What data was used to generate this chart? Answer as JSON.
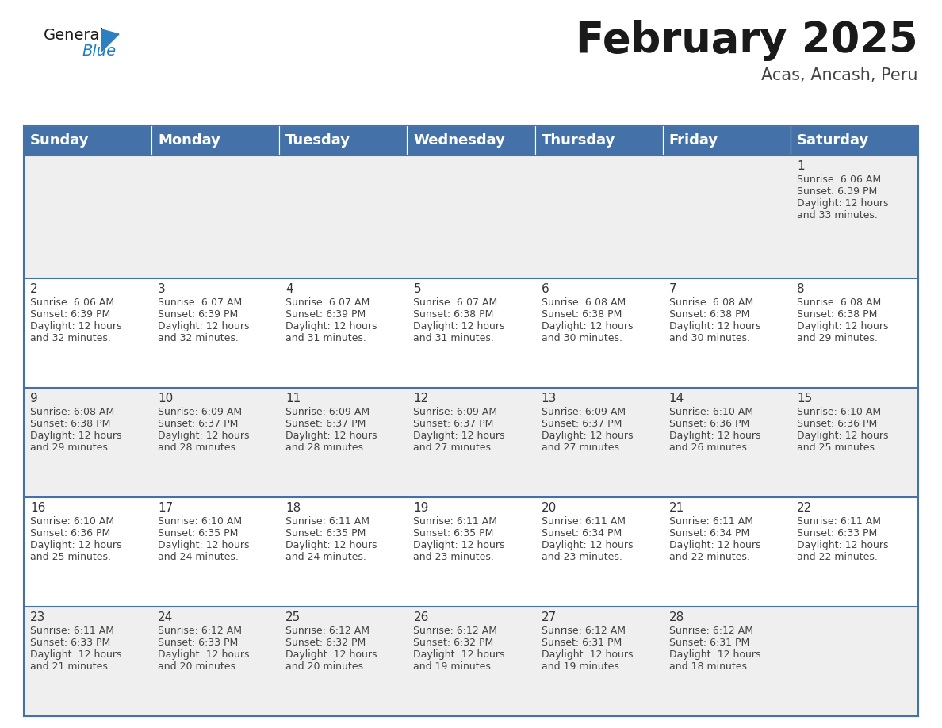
{
  "title": "February 2025",
  "subtitle": "Acas, Ancash, Peru",
  "header_bg": "#4472a8",
  "header_text": "#ffffff",
  "row_bg_light": "#efefef",
  "row_bg_white": "#ffffff",
  "cell_border_color": "#4472a8",
  "day_headers": [
    "Sunday",
    "Monday",
    "Tuesday",
    "Wednesday",
    "Thursday",
    "Friday",
    "Saturday"
  ],
  "calendar_data": [
    [
      null,
      null,
      null,
      null,
      null,
      null,
      {
        "day": 1,
        "sunrise": "6:06 AM",
        "sunset": "6:39 PM",
        "daylight": "12 hours",
        "daylight2": "and 33 minutes."
      }
    ],
    [
      {
        "day": 2,
        "sunrise": "6:06 AM",
        "sunset": "6:39 PM",
        "daylight": "12 hours",
        "daylight2": "and 32 minutes."
      },
      {
        "day": 3,
        "sunrise": "6:07 AM",
        "sunset": "6:39 PM",
        "daylight": "12 hours",
        "daylight2": "and 32 minutes."
      },
      {
        "day": 4,
        "sunrise": "6:07 AM",
        "sunset": "6:39 PM",
        "daylight": "12 hours",
        "daylight2": "and 31 minutes."
      },
      {
        "day": 5,
        "sunrise": "6:07 AM",
        "sunset": "6:38 PM",
        "daylight": "12 hours",
        "daylight2": "and 31 minutes."
      },
      {
        "day": 6,
        "sunrise": "6:08 AM",
        "sunset": "6:38 PM",
        "daylight": "12 hours",
        "daylight2": "and 30 minutes."
      },
      {
        "day": 7,
        "sunrise": "6:08 AM",
        "sunset": "6:38 PM",
        "daylight": "12 hours",
        "daylight2": "and 30 minutes."
      },
      {
        "day": 8,
        "sunrise": "6:08 AM",
        "sunset": "6:38 PM",
        "daylight": "12 hours",
        "daylight2": "and 29 minutes."
      }
    ],
    [
      {
        "day": 9,
        "sunrise": "6:08 AM",
        "sunset": "6:38 PM",
        "daylight": "12 hours",
        "daylight2": "and 29 minutes."
      },
      {
        "day": 10,
        "sunrise": "6:09 AM",
        "sunset": "6:37 PM",
        "daylight": "12 hours",
        "daylight2": "and 28 minutes."
      },
      {
        "day": 11,
        "sunrise": "6:09 AM",
        "sunset": "6:37 PM",
        "daylight": "12 hours",
        "daylight2": "and 28 minutes."
      },
      {
        "day": 12,
        "sunrise": "6:09 AM",
        "sunset": "6:37 PM",
        "daylight": "12 hours",
        "daylight2": "and 27 minutes."
      },
      {
        "day": 13,
        "sunrise": "6:09 AM",
        "sunset": "6:37 PM",
        "daylight": "12 hours",
        "daylight2": "and 27 minutes."
      },
      {
        "day": 14,
        "sunrise": "6:10 AM",
        "sunset": "6:36 PM",
        "daylight": "12 hours",
        "daylight2": "and 26 minutes."
      },
      {
        "day": 15,
        "sunrise": "6:10 AM",
        "sunset": "6:36 PM",
        "daylight": "12 hours",
        "daylight2": "and 25 minutes."
      }
    ],
    [
      {
        "day": 16,
        "sunrise": "6:10 AM",
        "sunset": "6:36 PM",
        "daylight": "12 hours",
        "daylight2": "and 25 minutes."
      },
      {
        "day": 17,
        "sunrise": "6:10 AM",
        "sunset": "6:35 PM",
        "daylight": "12 hours",
        "daylight2": "and 24 minutes."
      },
      {
        "day": 18,
        "sunrise": "6:11 AM",
        "sunset": "6:35 PM",
        "daylight": "12 hours",
        "daylight2": "and 24 minutes."
      },
      {
        "day": 19,
        "sunrise": "6:11 AM",
        "sunset": "6:35 PM",
        "daylight": "12 hours",
        "daylight2": "and 23 minutes."
      },
      {
        "day": 20,
        "sunrise": "6:11 AM",
        "sunset": "6:34 PM",
        "daylight": "12 hours",
        "daylight2": "and 23 minutes."
      },
      {
        "day": 21,
        "sunrise": "6:11 AM",
        "sunset": "6:34 PM",
        "daylight": "12 hours",
        "daylight2": "and 22 minutes."
      },
      {
        "day": 22,
        "sunrise": "6:11 AM",
        "sunset": "6:33 PM",
        "daylight": "12 hours",
        "daylight2": "and 22 minutes."
      }
    ],
    [
      {
        "day": 23,
        "sunrise": "6:11 AM",
        "sunset": "6:33 PM",
        "daylight": "12 hours",
        "daylight2": "and 21 minutes."
      },
      {
        "day": 24,
        "sunrise": "6:12 AM",
        "sunset": "6:33 PM",
        "daylight": "12 hours",
        "daylight2": "and 20 minutes."
      },
      {
        "day": 25,
        "sunrise": "6:12 AM",
        "sunset": "6:32 PM",
        "daylight": "12 hours",
        "daylight2": "and 20 minutes."
      },
      {
        "day": 26,
        "sunrise": "6:12 AM",
        "sunset": "6:32 PM",
        "daylight": "12 hours",
        "daylight2": "and 19 minutes."
      },
      {
        "day": 27,
        "sunrise": "6:12 AM",
        "sunset": "6:31 PM",
        "daylight": "12 hours",
        "daylight2": "and 19 minutes."
      },
      {
        "day": 28,
        "sunrise": "6:12 AM",
        "sunset": "6:31 PM",
        "daylight": "12 hours",
        "daylight2": "and 18 minutes."
      },
      null
    ]
  ],
  "logo_color_general": "#1a1a1a",
  "logo_color_blue": "#1e7fc0",
  "logo_triangle_color": "#2e7fc0",
  "title_color": "#1a1a1a",
  "subtitle_color": "#444444",
  "day_num_color": "#333333",
  "cell_text_color": "#444444",
  "title_fontsize": 38,
  "subtitle_fontsize": 15,
  "header_fontsize": 13,
  "day_num_fontsize": 11,
  "cell_text_fontsize": 9
}
